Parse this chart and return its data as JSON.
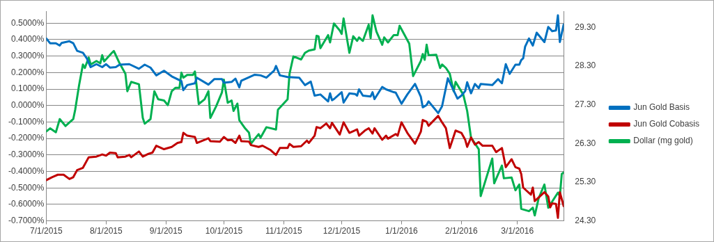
{
  "chart_data": {
    "type": "line",
    "marker": "none",
    "grid": "y",
    "legend": "right",
    "xlim": [
      "2015-07-01",
      "2016-03-25"
    ],
    "xticks": [
      {
        "value": "2015-07-01",
        "label": "7/1/2015"
      },
      {
        "value": "2015-08-01",
        "label": "8/1/2015"
      },
      {
        "value": "2015-09-01",
        "label": "9/1/2015"
      },
      {
        "value": "2015-10-01",
        "label": "10/1/2015"
      },
      {
        "value": "2015-11-01",
        "label": "11/1/2015"
      },
      {
        "value": "2015-12-01",
        "label": "12/1/2015"
      },
      {
        "value": "2016-01-01",
        "label": "1/1/2016"
      },
      {
        "value": "2016-02-01",
        "label": "2/1/2016"
      },
      {
        "value": "2016-03-01",
        "label": "3/1/2016"
      }
    ],
    "ylim": [
      -0.7,
      0.572
    ],
    "yticks": [
      {
        "value": 0.5,
        "label": "0.5000%"
      },
      {
        "value": 0.4,
        "label": "0.4000%"
      },
      {
        "value": 0.3,
        "label": "0.3000%"
      },
      {
        "value": 0.2,
        "label": "0.2000%"
      },
      {
        "value": 0.1,
        "label": "0.1000%"
      },
      {
        "value": 0,
        "label": "0.0000%"
      },
      {
        "value": -0.1,
        "label": "-0.1000%"
      },
      {
        "value": -0.2,
        "label": "-0.2000%"
      },
      {
        "value": -0.3,
        "label": "-0.3000%"
      },
      {
        "value": -0.4,
        "label": "-0.4000%"
      },
      {
        "value": -0.5,
        "label": "-0.5000%"
      },
      {
        "value": -0.6,
        "label": "-0.6000%"
      },
      {
        "value": -0.7,
        "label": "-0.7000%"
      }
    ],
    "y2lim": [
      24.3,
      29.715
    ],
    "y2ticks": [
      {
        "value": 29.3,
        "label": "29.30"
      },
      {
        "value": 28.3,
        "label": "28.30"
      },
      {
        "value": 27.3,
        "label": "27.30"
      },
      {
        "value": 26.3,
        "label": "26.30"
      },
      {
        "value": 25.3,
        "label": "25.30"
      },
      {
        "value": 24.3,
        "label": "24.30"
      }
    ],
    "series": [
      {
        "name": "Jun Gold Basis",
        "color": "#0070c0",
        "x": [
          "2015-07-01",
          "2015-07-03",
          "2015-07-06",
          "2015-07-08",
          "2015-07-09",
          "2015-07-13",
          "2015-07-15",
          "2015-07-17",
          "2015-07-20",
          "2015-07-22",
          "2015-07-24",
          "2015-07-27",
          "2015-07-30",
          "2015-08-01",
          "2015-08-03",
          "2015-08-06",
          "2015-08-08",
          "2015-08-13",
          "2015-08-18",
          "2015-08-21",
          "2015-08-24",
          "2015-08-27",
          "2015-08-31",
          "2015-09-04",
          "2015-09-09",
          "2015-09-10",
          "2015-09-12",
          "2015-09-16",
          "2015-09-17",
          "2015-09-23",
          "2015-09-26",
          "2015-09-30",
          "2015-10-01",
          "2015-10-05",
          "2015-10-07",
          "2015-10-09",
          "2015-10-10",
          "2015-10-13",
          "2015-10-15",
          "2015-10-17",
          "2015-10-20",
          "2015-10-23",
          "2015-10-27",
          "2015-10-28",
          "2015-10-30",
          "2015-11-03",
          "2015-11-09",
          "2015-11-12",
          "2015-11-15",
          "2015-11-17",
          "2015-11-20",
          "2015-11-24",
          "2015-11-25",
          "2015-11-26",
          "2015-11-27",
          "2015-12-01",
          "2015-12-02",
          "2015-12-05",
          "2015-12-08",
          "2015-12-09",
          "2015-12-10",
          "2015-12-12",
          "2015-12-16",
          "2015-12-17",
          "2015-12-18",
          "2015-12-22",
          "2015-12-24",
          "2015-12-28",
          "2015-12-29",
          "2016-01-01",
          "2016-01-04",
          "2016-01-08",
          "2016-01-11",
          "2016-01-12",
          "2016-01-14",
          "2016-01-15",
          "2016-01-20",
          "2016-01-22",
          "2016-01-25",
          "2016-01-30",
          "2016-02-01",
          "2016-02-03",
          "2016-02-04",
          "2016-02-06",
          "2016-02-08",
          "2016-02-10",
          "2016-02-11",
          "2016-02-17",
          "2016-02-20",
          "2016-02-22",
          "2016-02-24",
          "2016-02-26",
          "2016-02-29",
          "2016-03-02",
          "2016-03-03",
          "2016-03-04",
          "2016-03-05",
          "2016-03-07",
          "2016-03-09",
          "2016-03-11",
          "2016-03-15",
          "2016-03-17",
          "2016-03-19",
          "2016-03-21",
          "2016-03-22",
          "2016-03-23",
          "2016-03-25"
        ],
        "values": [
          0.407,
          0.378,
          0.378,
          0.364,
          0.38,
          0.39,
          0.378,
          0.332,
          0.32,
          0.286,
          0.233,
          0.251,
          0.233,
          0.251,
          0.23,
          0.233,
          0.248,
          0.251,
          0.223,
          0.248,
          0.23,
          0.183,
          0.211,
          0.177,
          0.148,
          0.093,
          0.124,
          0.135,
          0.169,
          0.127,
          0.16,
          0.16,
          0.138,
          0.143,
          0.163,
          0.11,
          0.15,
          0.166,
          0.177,
          0.187,
          0.183,
          0.169,
          0.211,
          0.24,
          0.183,
          0.173,
          0.169,
          0.124,
          0.145,
          0.06,
          0.067,
          0.025,
          0.074,
          0.032,
          0.039,
          0.081,
          0.018,
          0.074,
          0.07,
          0.06,
          0.098,
          0.06,
          0.055,
          0.081,
          0.039,
          0.113,
          0.098,
          0.081,
          0.078,
          0.011,
          0.067,
          0.131,
          0.053,
          -0.011,
          0.003,
          0.025,
          -0.046,
          -0.004,
          0.165,
          0.042,
          0.06,
          0.088,
          0.141,
          0.074,
          0.131,
          0.106,
          0.131,
          0.124,
          0.16,
          0.135,
          0.251,
          0.192,
          0.248,
          0.248,
          0.276,
          0.286,
          0.357,
          0.407,
          0.364,
          0.442,
          0.385,
          0.477,
          0.451,
          0.456,
          0.548,
          0.385,
          0.492
        ]
      },
      {
        "name": "Jun Gold Cobasis",
        "color": "#c00000",
        "x": [
          "2015-07-01",
          "2015-07-04",
          "2015-07-07",
          "2015-07-10",
          "2015-07-13",
          "2015-07-15",
          "2015-07-17",
          "2015-07-20",
          "2015-07-23",
          "2015-07-27",
          "2015-07-30",
          "2015-08-01",
          "2015-08-03",
          "2015-08-06",
          "2015-08-07",
          "2015-08-11",
          "2015-08-13",
          "2015-08-14",
          "2015-08-18",
          "2015-08-20",
          "2015-08-23",
          "2015-08-25",
          "2015-08-27",
          "2015-08-31",
          "2015-09-04",
          "2015-09-07",
          "2015-09-09",
          "2015-09-10",
          "2015-09-12",
          "2015-09-16",
          "2015-09-17",
          "2015-09-23",
          "2015-09-24",
          "2015-09-29",
          "2015-10-01",
          "2015-10-03",
          "2015-10-05",
          "2015-10-07",
          "2015-10-09",
          "2015-10-10",
          "2015-10-14",
          "2015-10-15",
          "2015-10-19",
          "2015-10-21",
          "2015-10-25",
          "2015-10-28",
          "2015-10-30",
          "2015-11-03",
          "2015-11-04",
          "2015-11-06",
          "2015-11-10",
          "2015-11-13",
          "2015-11-14",
          "2015-11-17",
          "2015-11-18",
          "2015-11-20",
          "2015-11-23",
          "2015-11-25",
          "2015-11-26",
          "2015-11-30",
          "2015-12-02",
          "2015-12-05",
          "2015-12-09",
          "2015-12-10",
          "2015-12-13",
          "2015-12-15",
          "2015-12-17",
          "2015-12-18",
          "2015-12-22",
          "2015-12-24",
          "2015-12-25",
          "2015-12-29",
          "2015-12-30",
          "2016-01-01",
          "2016-01-04",
          "2016-01-08",
          "2016-01-11",
          "2016-01-12",
          "2016-01-14",
          "2016-01-15",
          "2016-01-20",
          "2016-01-22",
          "2016-01-24",
          "2016-01-26",
          "2016-01-29",
          "2016-02-01",
          "2016-02-03",
          "2016-02-04",
          "2016-02-06",
          "2016-02-08",
          "2016-02-10",
          "2016-02-12",
          "2016-02-17",
          "2016-02-19",
          "2016-02-22",
          "2016-02-24",
          "2016-02-27",
          "2016-02-29",
          "2016-03-02",
          "2016-03-03",
          "2016-03-04",
          "2016-03-08",
          "2016-03-09",
          "2016-03-10",
          "2016-03-15",
          "2016-03-17",
          "2016-03-18",
          "2016-03-19",
          "2016-03-21",
          "2016-03-22",
          "2016-03-23",
          "2016-03-25"
        ],
        "values": [
          -0.453,
          -0.435,
          -0.42,
          -0.42,
          -0.446,
          -0.435,
          -0.392,
          -0.378,
          -0.314,
          -0.31,
          -0.297,
          -0.304,
          -0.286,
          -0.289,
          -0.314,
          -0.31,
          -0.3,
          -0.314,
          -0.279,
          -0.31,
          -0.293,
          -0.286,
          -0.244,
          -0.265,
          -0.251,
          -0.227,
          -0.222,
          -0.166,
          -0.183,
          -0.191,
          -0.227,
          -0.199,
          -0.216,
          -0.219,
          -0.191,
          -0.211,
          -0.208,
          -0.227,
          -0.183,
          -0.216,
          -0.219,
          -0.24,
          -0.251,
          -0.244,
          -0.269,
          -0.3,
          -0.258,
          -0.258,
          -0.233,
          -0.251,
          -0.247,
          -0.213,
          -0.227,
          -0.183,
          -0.131,
          -0.138,
          -0.109,
          -0.138,
          -0.105,
          -0.176,
          -0.102,
          -0.166,
          -0.145,
          -0.183,
          -0.152,
          -0.138,
          -0.17,
          -0.138,
          -0.208,
          -0.183,
          -0.201,
          -0.173,
          -0.183,
          -0.102,
          -0.166,
          -0.232,
          -0.159,
          -0.088,
          -0.099,
          -0.123,
          -0.063,
          -0.102,
          -0.138,
          -0.258,
          -0.152,
          -0.166,
          -0.208,
          -0.251,
          -0.194,
          -0.237,
          -0.222,
          -0.244,
          -0.244,
          -0.283,
          -0.258,
          -0.374,
          -0.326,
          -0.374,
          -0.383,
          -0.416,
          -0.498,
          -0.541,
          -0.498,
          -0.58,
          -0.526,
          -0.552,
          -0.618,
          -0.594,
          -0.597,
          -0.682,
          -0.526,
          -0.611
        ]
      },
      {
        "name": "Dollar (mg gold)",
        "color": "#00b050",
        "axis": "y2",
        "x": [
          "2015-07-01",
          "2015-07-03",
          "2015-07-06",
          "2015-07-08",
          "2015-07-11",
          "2015-07-15",
          "2015-07-16",
          "2015-07-18",
          "2015-07-20",
          "2015-07-21",
          "2015-07-23",
          "2015-07-24",
          "2015-07-27",
          "2015-07-29",
          "2015-07-30",
          "2015-07-31",
          "2015-08-04",
          "2015-08-05",
          "2015-08-08",
          "2015-08-11",
          "2015-08-12",
          "2015-08-14",
          "2015-08-18",
          "2015-08-20",
          "2015-08-21",
          "2015-08-24",
          "2015-08-26",
          "2015-08-28",
          "2015-08-31",
          "2015-09-02",
          "2015-09-04",
          "2015-09-06",
          "2015-09-08",
          "2015-09-09",
          "2015-09-10",
          "2015-09-12",
          "2015-09-15",
          "2015-09-16",
          "2015-09-18",
          "2015-09-21",
          "2015-09-23",
          "2015-09-24",
          "2015-09-27",
          "2015-09-30",
          "2015-10-01",
          "2015-10-03",
          "2015-10-05",
          "2015-10-06",
          "2015-10-08",
          "2015-10-09",
          "2015-10-12",
          "2015-10-14",
          "2015-10-15",
          "2015-10-17",
          "2015-10-19",
          "2015-10-20",
          "2015-10-23",
          "2015-10-28",
          "2015-10-29",
          "2015-11-03",
          "2015-11-04",
          "2015-11-06",
          "2015-11-10",
          "2015-11-12",
          "2015-11-14",
          "2015-11-17",
          "2015-11-18",
          "2015-11-19",
          "2015-11-20",
          "2015-11-24",
          "2015-11-25",
          "2015-11-27",
          "2015-11-30",
          "2015-12-01",
          "2015-12-02",
          "2015-12-05",
          "2015-12-07",
          "2015-12-09",
          "2015-12-10",
          "2015-12-12",
          "2015-12-15",
          "2015-12-16",
          "2015-12-17",
          "2015-12-19",
          "2015-12-22",
          "2015-12-23",
          "2015-12-25",
          "2015-12-28",
          "2015-12-30",
          "2015-12-31",
          "2016-01-05",
          "2016-01-07",
          "2016-01-11",
          "2016-01-12",
          "2016-01-13",
          "2016-01-14",
          "2016-01-15",
          "2016-01-19",
          "2016-01-21",
          "2016-01-22",
          "2016-01-24",
          "2016-01-26",
          "2016-01-28",
          "2016-01-29",
          "2016-02-02",
          "2016-02-04",
          "2016-02-06",
          "2016-02-10",
          "2016-02-11",
          "2016-02-17",
          "2016-02-18",
          "2016-02-22",
          "2016-02-23",
          "2016-02-27",
          "2016-02-29",
          "2016-03-02",
          "2016-03-03",
          "2016-03-07",
          "2016-03-09",
          "2016-03-10",
          "2016-03-12",
          "2016-03-15",
          "2016-03-17",
          "2016-03-22",
          "2016-03-23",
          "2016-03-24",
          "2016-03-25"
        ],
        "values": [
          26.61,
          26.69,
          26.59,
          26.93,
          26.75,
          26.93,
          27.17,
          27.8,
          28.34,
          28.25,
          28.52,
          28.34,
          28.43,
          28.37,
          28.58,
          28.42,
          28.64,
          28.69,
          28.37,
          28.1,
          27.65,
          27.89,
          27.83,
          26.96,
          26.81,
          26.93,
          27.65,
          27.44,
          27.41,
          27.29,
          27.65,
          27.74,
          27.74,
          28.13,
          28.0,
          28.07,
          28.07,
          28.16,
          27.32,
          27.44,
          27.65,
          26.96,
          27.26,
          27.62,
          27.95,
          27.35,
          27.41,
          27.14,
          27.33,
          26.9,
          26.69,
          26.58,
          26.29,
          26.42,
          26.54,
          26.45,
          26.72,
          26.66,
          27.17,
          27.44,
          28.1,
          28.55,
          28.47,
          28.64,
          28.7,
          28.73,
          29.08,
          29.07,
          28.76,
          29.1,
          28.91,
          29.4,
          29.22,
          29.13,
          29.53,
          28.64,
          29.07,
          28.95,
          29.04,
          28.95,
          29.37,
          29.02,
          29.61,
          29.19,
          28.85,
          29.04,
          28.91,
          29.1,
          29.1,
          29.34,
          28.88,
          28.04,
          28.43,
          28.61,
          28.46,
          28.85,
          28.58,
          28.59,
          28.25,
          28.34,
          28.25,
          28.1,
          27.65,
          27.89,
          27.56,
          27.14,
          26.45,
          26.15,
          24.94,
          25.91,
          25.27,
          25.73,
          25.4,
          25.42,
          25.09,
          25.24,
          24.61,
          24.55,
          24.64,
          24.44,
          24.88,
          25.24,
          24.64,
          25.03,
          24.94,
          25.51,
          25.55
        ]
      }
    ]
  }
}
